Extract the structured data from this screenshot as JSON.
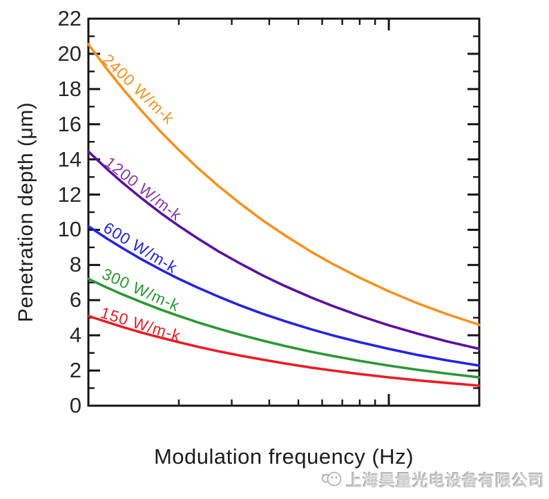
{
  "watermark": {
    "text": "上海昊量光电设备有限公司"
  },
  "chart_data": {
    "type": "line",
    "title": "",
    "xlabel": "Modulation frequency (Hz)",
    "ylabel": "Penetration depth (μm)",
    "x_scale": "log",
    "x_range_relative": [
      1,
      20
    ],
    "x_minor_ticks_relative": [
      2,
      3,
      4,
      5,
      6,
      7,
      8,
      9
    ],
    "x_major_ticks_relative": [
      10
    ],
    "x_tick_labels": [],
    "ylim": [
      0,
      22
    ],
    "y_major_step": 2,
    "y_minor_step": 1,
    "y_tick_labels": [
      "0",
      "2",
      "4",
      "6",
      "8",
      "10",
      "12",
      "14",
      "16",
      "18",
      "20",
      "22"
    ],
    "grid": false,
    "legend": "inline-curve-labels",
    "frame_color": "#141414",
    "f_values": [
      1,
      1.15,
      1.3,
      1.5,
      1.75,
      2,
      2.3,
      2.7,
      3.2,
      3.8,
      4.5,
      5.5,
      6.5,
      8,
      10,
      12.5,
      15.5,
      20
    ],
    "series": [
      {
        "name": "2400 W/m-k",
        "conductivity_w_mk": 2400,
        "color": "#F5921E",
        "label_color": "#F5921E",
        "depths": [
          20.55,
          19.16,
          18.02,
          16.78,
          15.53,
          14.53,
          13.55,
          12.51,
          11.49,
          10.54,
          9.69,
          8.76,
          8.06,
          7.27,
          6.5,
          5.81,
          5.22,
          4.6
        ],
        "label": {
          "text": "2400 W/m-k",
          "x": 147,
          "y": 88,
          "angle": 44
        }
      },
      {
        "name": "1200 W/m-k",
        "conductivity_w_mk": 1200,
        "color": "#5C0FA0",
        "label_color": "#8C3AA8",
        "depths": [
          14.45,
          13.47,
          12.67,
          11.8,
          10.92,
          10.22,
          9.53,
          8.79,
          8.08,
          7.41,
          6.81,
          6.16,
          5.67,
          5.11,
          4.57,
          4.09,
          3.67,
          3.23
        ],
        "label": {
          "text": "1200 W/m-k",
          "x": 150,
          "y": 238,
          "angle": 38
        }
      },
      {
        "name": "600 W/m-k",
        "conductivity_w_mk": 600,
        "color": "#2324DF",
        "label_color": "#2324DF",
        "depths": [
          10.2,
          9.51,
          8.95,
          8.33,
          7.71,
          7.21,
          6.73,
          6.21,
          5.7,
          5.23,
          4.81,
          4.35,
          4.0,
          3.61,
          3.23,
          2.88,
          2.59,
          2.28
        ],
        "label": {
          "text": "600 W/m-k",
          "x": 148,
          "y": 334,
          "angle": 31
        }
      },
      {
        "name": "300 W/m-k",
        "conductivity_w_mk": 300,
        "color": "#2B9733",
        "label_color": "#2B9733",
        "depths": [
          7.21,
          6.72,
          6.32,
          5.89,
          5.45,
          5.1,
          4.75,
          4.39,
          4.03,
          3.7,
          3.4,
          3.07,
          2.83,
          2.55,
          2.28,
          2.04,
          1.83,
          1.61
        ],
        "label": {
          "text": "300 W/m-k",
          "x": 146,
          "y": 402,
          "angle": 24
        }
      },
      {
        "name": "150 W/m-k",
        "conductivity_w_mk": 150,
        "color": "#EC1C24",
        "label_color": "#EC1C24",
        "depths": [
          5.1,
          4.76,
          4.47,
          4.16,
          3.86,
          3.61,
          3.36,
          3.1,
          2.85,
          2.62,
          2.4,
          2.17,
          2.0,
          1.8,
          1.61,
          1.44,
          1.3,
          1.14
        ],
        "label": {
          "text": "150 W/m-k",
          "x": 144,
          "y": 459,
          "angle": 17
        }
      }
    ]
  }
}
